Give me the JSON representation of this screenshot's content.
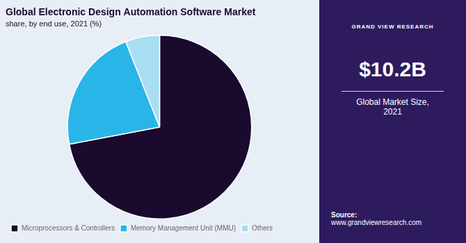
{
  "chart_data": {
    "type": "pie",
    "title": "Global Electronic Design Automation Software Market",
    "subtitle": "share, by end use, 2021 (%)",
    "categories": [
      "Microprocessors & Controllers",
      "Memory Management Unit (MMU)",
      "Others"
    ],
    "values": [
      72,
      22,
      6
    ],
    "colors": [
      "#1a0a2e",
      "#29b5e8",
      "#a8dff0"
    ],
    "legend": "bottom",
    "annotations": [
      "GRAND VIEW RESEARCH",
      "$10.2B",
      "Global Market Size,\n2021",
      "Source:",
      "www.grandviewresearch.com"
    ]
  }
}
